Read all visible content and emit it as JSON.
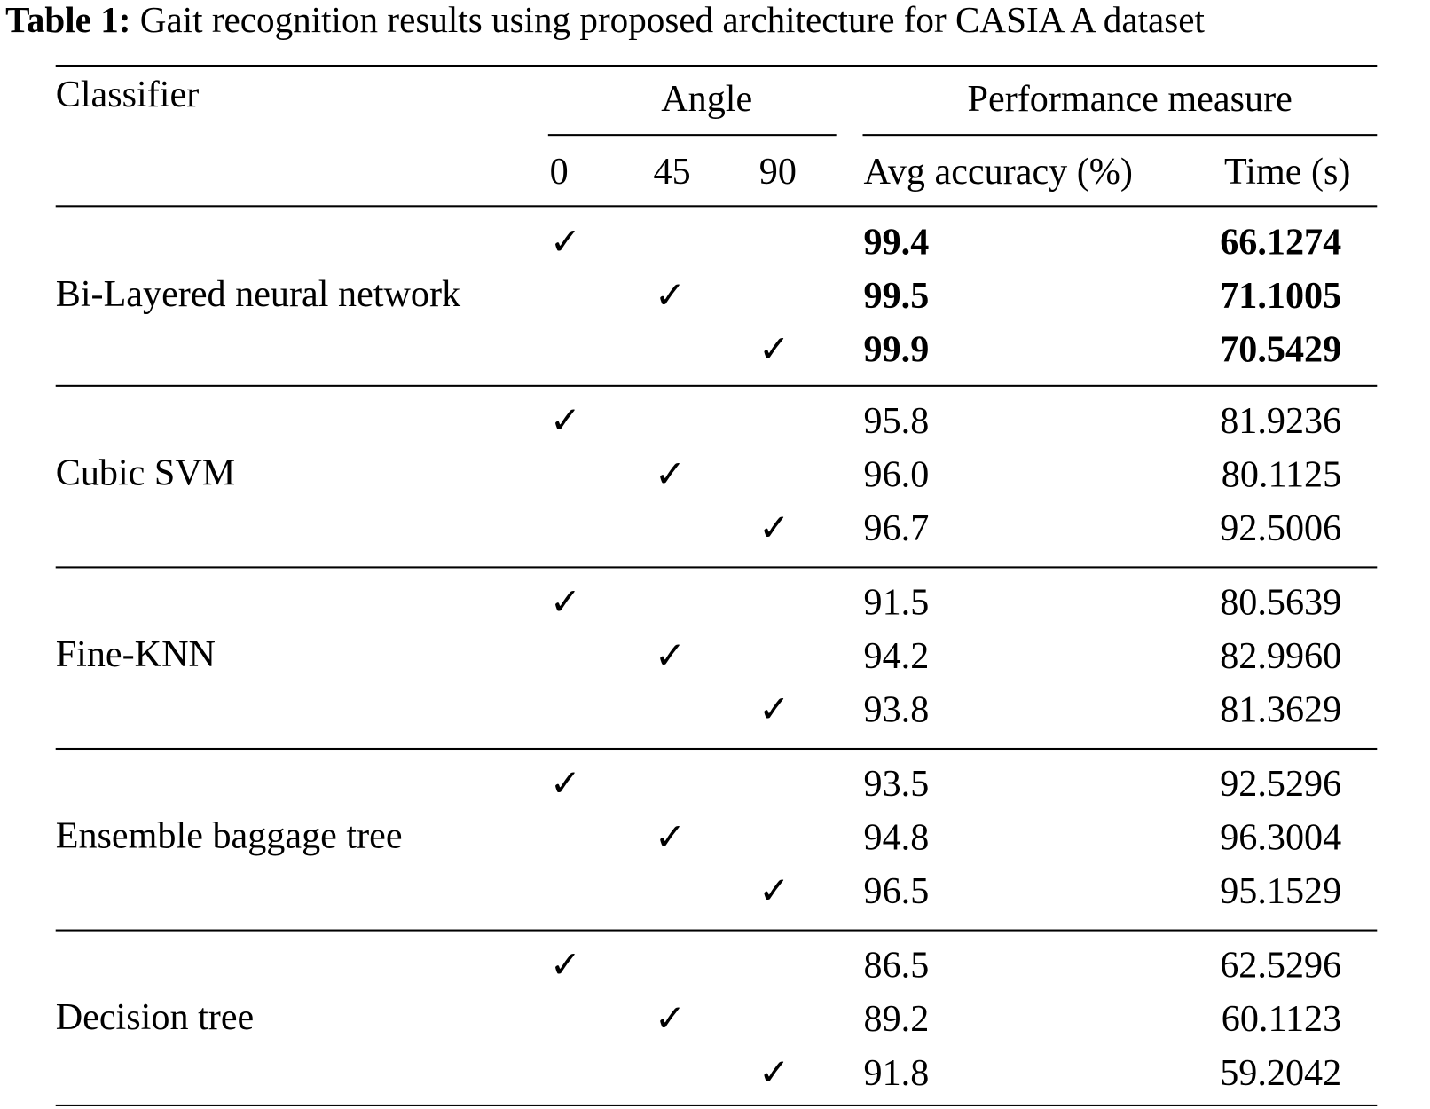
{
  "caption": {
    "label": "Table 1:",
    "text": "Gait recognition results using proposed architecture for CASIA A dataset"
  },
  "headers": {
    "classifier": "Classifier",
    "angle": "Angle",
    "performance": "Performance measure",
    "angles": [
      "0",
      "45",
      "90"
    ],
    "accuracy": "Avg accuracy (%)",
    "time": "Time (s)"
  },
  "check_symbol": "✓",
  "groups": [
    {
      "classifier": "Bi-Layered neural network",
      "bold": true,
      "rows": [
        {
          "angle": "0",
          "accuracy": "99.4",
          "time": "66.1274"
        },
        {
          "angle": "45",
          "accuracy": "99.5",
          "time": "71.1005"
        },
        {
          "angle": "90",
          "accuracy": "99.9",
          "time": "70.5429"
        }
      ]
    },
    {
      "classifier": "Cubic SVM",
      "bold": false,
      "rows": [
        {
          "angle": "0",
          "accuracy": "95.8",
          "time": "81.9236"
        },
        {
          "angle": "45",
          "accuracy": "96.0",
          "time": "80.1125"
        },
        {
          "angle": "90",
          "accuracy": "96.7",
          "time": "92.5006"
        }
      ]
    },
    {
      "classifier": "Fine-KNN",
      "bold": false,
      "rows": [
        {
          "angle": "0",
          "accuracy": "91.5",
          "time": "80.5639"
        },
        {
          "angle": "45",
          "accuracy": "94.2",
          "time": "82.9960"
        },
        {
          "angle": "90",
          "accuracy": "93.8",
          "time": "81.3629"
        }
      ]
    },
    {
      "classifier": "Ensemble baggage tree",
      "bold": false,
      "rows": [
        {
          "angle": "0",
          "accuracy": "93.5",
          "time": "92.5296"
        },
        {
          "angle": "45",
          "accuracy": "94.8",
          "time": "96.3004"
        },
        {
          "angle": "90",
          "accuracy": "96.5",
          "time": "95.1529"
        }
      ]
    },
    {
      "classifier": "Decision tree",
      "bold": false,
      "rows": [
        {
          "angle": "0",
          "accuracy": "86.5",
          "time": "62.5296"
        },
        {
          "angle": "45",
          "accuracy": "89.2",
          "time": "60.1123"
        },
        {
          "angle": "90",
          "accuracy": "91.8",
          "time": "59.2042"
        }
      ]
    }
  ]
}
